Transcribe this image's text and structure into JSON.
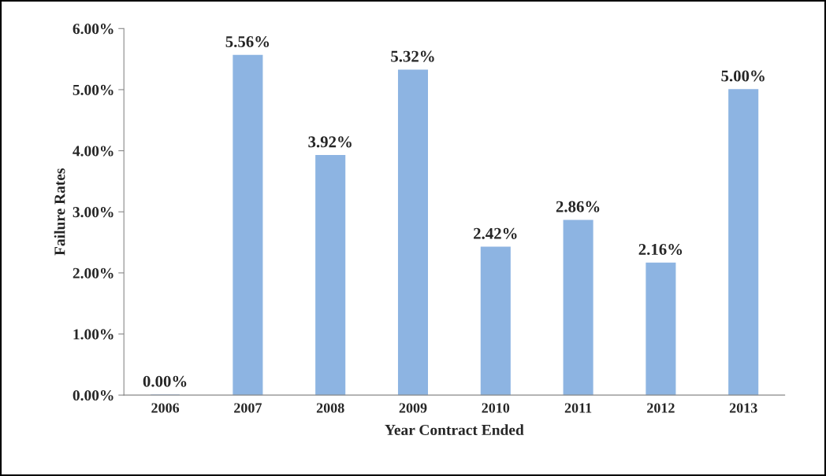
{
  "chart_data": {
    "type": "bar",
    "xlabel": "Year Contract Ended",
    "ylabel": "Failure Rates",
    "categories": [
      "2006",
      "2007",
      "2008",
      "2009",
      "2010",
      "2011",
      "2012",
      "2013"
    ],
    "values": [
      0,
      5.56,
      3.92,
      5.32,
      2.42,
      2.86,
      2.16,
      5.0
    ],
    "value_labels": [
      "0.00%",
      "5.56%",
      "3.92%",
      "5.32%",
      "2.42%",
      "2.86%",
      "2.16%",
      "5.00%"
    ],
    "color": "#8db4e2",
    "ylim": [
      0,
      6
    ],
    "yticks": [
      {
        "value": 0,
        "label": "0.00%"
      },
      {
        "value": 1,
        "label": "1.00%"
      },
      {
        "value": 2,
        "label": "2.00%"
      },
      {
        "value": 3,
        "label": "3.00%"
      },
      {
        "value": 4,
        "label": "4.00%"
      },
      {
        "value": 5,
        "label": "5.00%"
      },
      {
        "value": 6,
        "label": "6.00%"
      }
    ],
    "grid": false
  }
}
